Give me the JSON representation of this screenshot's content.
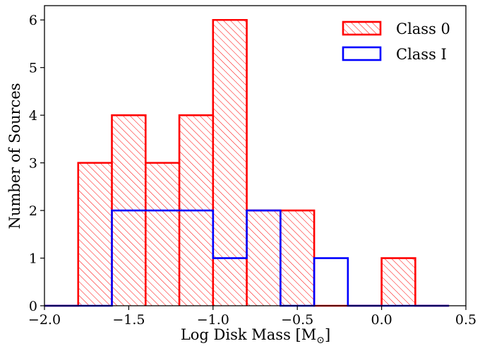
{
  "chart_data": {
    "type": "histogram",
    "xlabel": "Log Disk Mass [M",
    "xlabel_subscript": "⊙",
    "xlabel_suffix": "]",
    "ylabel": "Number of Sources",
    "xlim": [
      -2.0,
      0.5
    ],
    "ylim": [
      0,
      6.3
    ],
    "xticks": [
      -2.0,
      -1.5,
      -1.0,
      -0.5,
      0.0,
      0.5
    ],
    "xtick_labels": [
      "−2.0",
      "−1.5",
      "−1.0",
      "−0.5",
      "0.0",
      "0.5"
    ],
    "yticks": [
      0,
      1,
      2,
      3,
      4,
      5,
      6
    ],
    "ytick_labels": [
      "0",
      "1",
      "2",
      "3",
      "4",
      "5",
      "6"
    ],
    "bin_edges": [
      -2.0,
      -1.8,
      -1.6,
      -1.4,
      -1.2,
      -1.0,
      -0.8,
      -0.6,
      -0.4,
      -0.2,
      0.0,
      0.2,
      0.4
    ],
    "legend_position": "top-right",
    "series": [
      {
        "name": "Class 0",
        "color": "#ff0000",
        "hatch": "diagonal",
        "counts": [
          0,
          3,
          4,
          3,
          4,
          6,
          2,
          2,
          0,
          0,
          1,
          0
        ]
      },
      {
        "name": "Class I",
        "color": "#0000ff",
        "hatch": "none",
        "counts": [
          0,
          0,
          2,
          2,
          2,
          1,
          2,
          0,
          1,
          0,
          0,
          0
        ]
      }
    ]
  }
}
